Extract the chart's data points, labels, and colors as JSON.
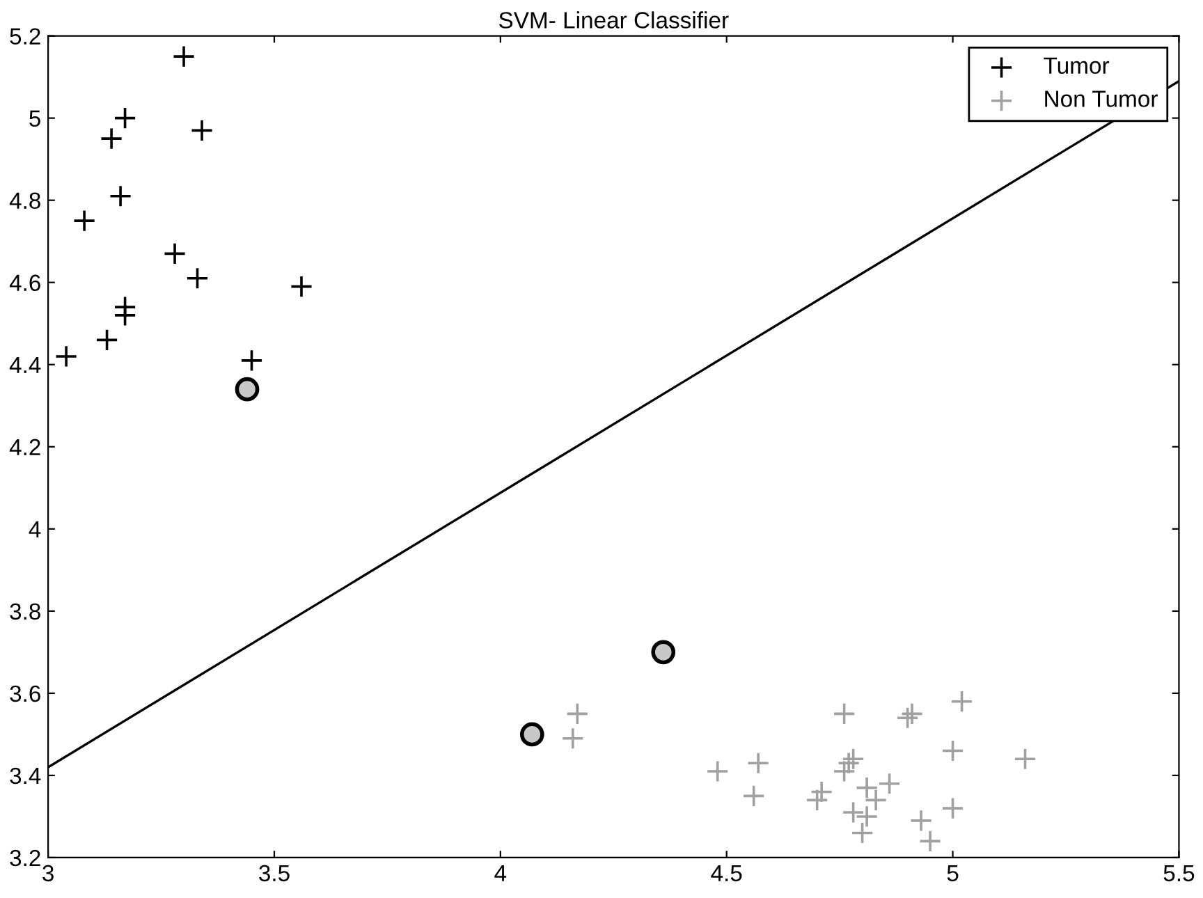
{
  "chart_data": {
    "type": "scatter",
    "title": "SVM- Linear Classifier",
    "xlim": [
      3,
      5.5
    ],
    "ylim": [
      3.2,
      5.2
    ],
    "xticks": [
      3,
      3.5,
      4,
      4.5,
      5,
      5.5
    ],
    "yticks": [
      3.2,
      3.4,
      3.6,
      3.8,
      4,
      4.2,
      4.4,
      4.6,
      4.8,
      5,
      5.2
    ],
    "grid": false,
    "legend": "top right",
    "series": [
      {
        "name": "Tumor",
        "marker": "cross",
        "color": "#000000",
        "x": [
          3.3,
          3.17,
          3.14,
          3.34,
          3.16,
          3.08,
          3.28,
          3.33,
          3.56,
          3.17,
          3.17,
          3.13,
          3.04,
          3.45
        ],
        "values": [
          5.15,
          5.0,
          4.95,
          4.97,
          4.81,
          4.75,
          4.67,
          4.61,
          4.59,
          4.54,
          4.52,
          4.46,
          4.42,
          4.41
        ]
      },
      {
        "name": "Non Tumor",
        "marker": "cross",
        "color": "#a0a0a0",
        "x": [
          4.17,
          4.16,
          4.48,
          4.57,
          4.56,
          4.76,
          4.77,
          4.78,
          4.76,
          4.71,
          4.7,
          4.81,
          4.83,
          4.86,
          4.78,
          4.81,
          4.8,
          4.91,
          4.9,
          5.02,
          5.0,
          5.0,
          4.93,
          4.95,
          5.16
        ],
        "values": [
          3.55,
          3.49,
          3.41,
          3.43,
          3.35,
          3.55,
          3.43,
          3.44,
          3.41,
          3.36,
          3.34,
          3.37,
          3.34,
          3.38,
          3.31,
          3.3,
          3.26,
          3.55,
          3.54,
          3.58,
          3.46,
          3.32,
          3.29,
          3.24,
          3.44
        ]
      },
      {
        "marker": "circle",
        "color": "#000000",
        "x": [
          3.44,
          4.07,
          4.36
        ],
        "values": [
          4.34,
          3.5,
          3.7
        ]
      },
      {
        "type": "line",
        "marker": "none",
        "color": "#000000",
        "x": [
          3,
          5.5
        ],
        "values": [
          3.42,
          5.09
        ]
      }
    ]
  }
}
